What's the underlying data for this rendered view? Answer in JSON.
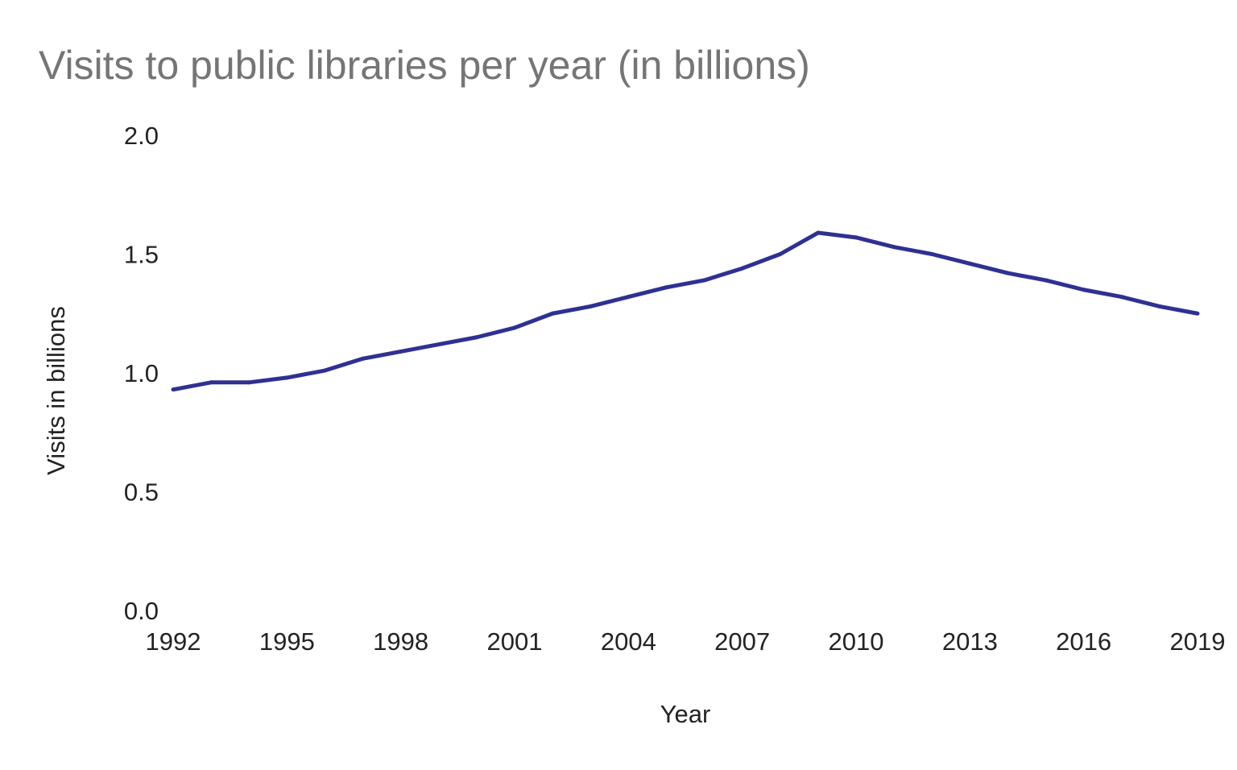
{
  "chart_data": {
    "type": "line",
    "title": "Visits to public libraries per year (in billions)",
    "xlabel": "Year",
    "ylabel": "Visits in billions",
    "xlim": [
      1992,
      2019
    ],
    "ylim": [
      0,
      2.0
    ],
    "x_ticks": [
      "1992",
      "1995",
      "1998",
      "2001",
      "2004",
      "2007",
      "2010",
      "2013",
      "2016",
      "2019"
    ],
    "y_ticks": [
      "0.0",
      "0.5",
      "1.0",
      "1.5",
      "2.0"
    ],
    "grid": false,
    "line_color": "#2e3192",
    "series": [
      {
        "x": [
          1992,
          1993,
          1994,
          1995,
          1996,
          1997,
          1998,
          1999,
          2000,
          2001,
          2002,
          2003,
          2004,
          2005,
          2006,
          2007,
          2008,
          2009,
          2010,
          2011,
          2012,
          2013,
          2014,
          2015,
          2016,
          2017,
          2018,
          2019
        ],
        "values": [
          0.93,
          0.96,
          0.96,
          0.98,
          1.01,
          1.06,
          1.09,
          1.12,
          1.15,
          1.19,
          1.25,
          1.28,
          1.32,
          1.36,
          1.39,
          1.44,
          1.5,
          1.59,
          1.57,
          1.53,
          1.5,
          1.46,
          1.42,
          1.39,
          1.35,
          1.32,
          1.28,
          1.25
        ]
      }
    ]
  }
}
